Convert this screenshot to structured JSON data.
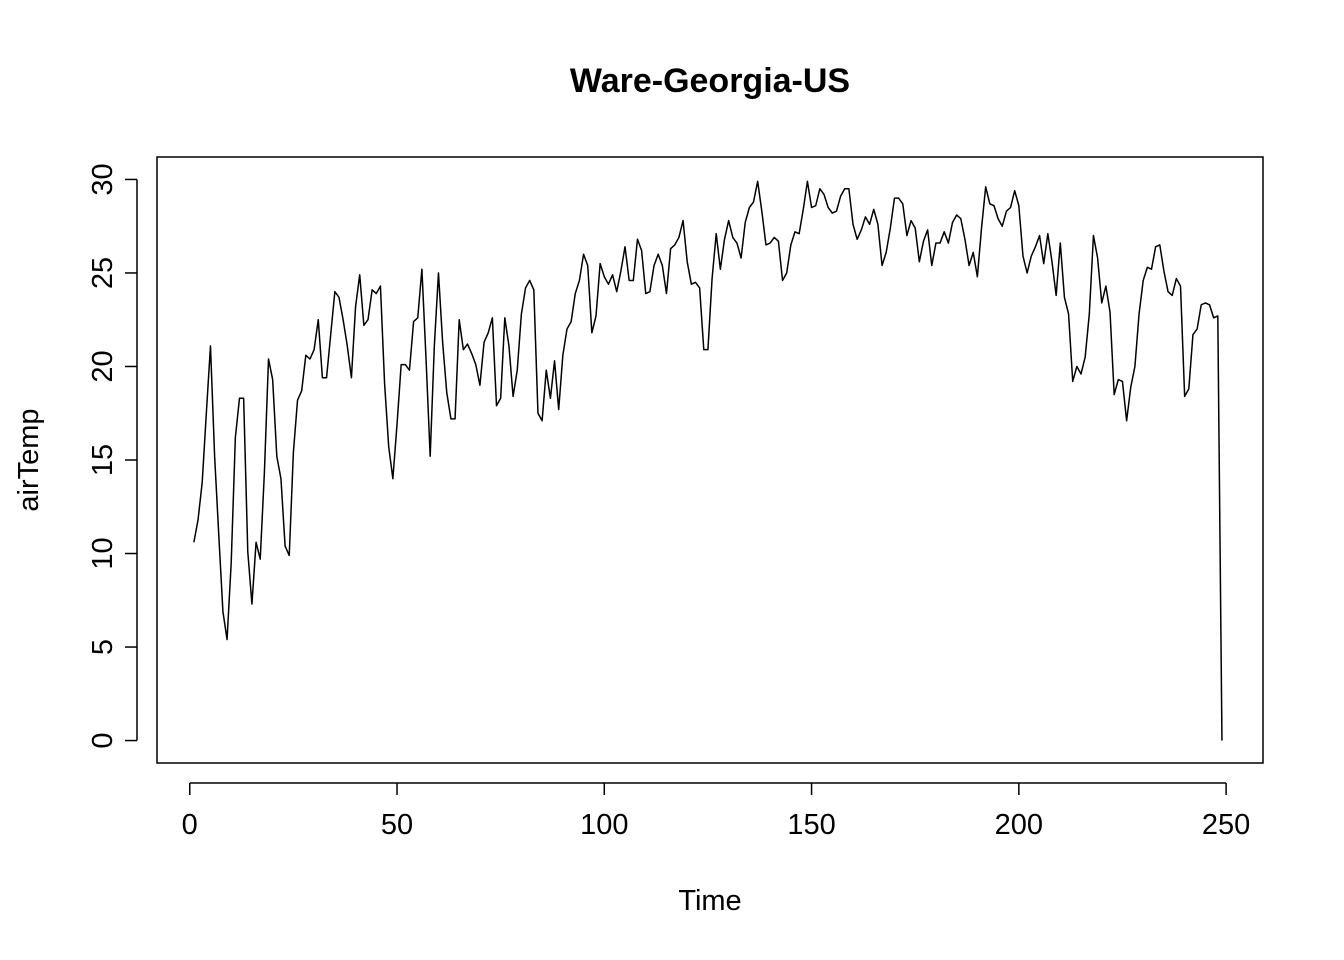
{
  "chart_data": {
    "type": "line",
    "title": "Ware-Georgia-US",
    "xlabel": "Time",
    "ylabel": "airTemp",
    "xlim": [
      -7.9,
      258.9
    ],
    "ylim": [
      -1.2,
      31.2
    ],
    "xticks": [
      0,
      50,
      100,
      150,
      200,
      250
    ],
    "yticks": [
      0,
      5,
      10,
      15,
      20,
      25,
      30
    ],
    "grid": false,
    "legend": "none",
    "line_color": "#000000",
    "series": [
      {
        "values": [
          10.6,
          11.8,
          13.8,
          17.5,
          21.1,
          15.2,
          11.0,
          6.9,
          5.4,
          9.5,
          16.2,
          18.3,
          18.3,
          10.1,
          7.3,
          10.6,
          9.7,
          14.3,
          20.4,
          19.3,
          15.2,
          14.0,
          10.4,
          9.9,
          15.4,
          18.2,
          18.7,
          20.6,
          20.4,
          20.9,
          22.5,
          19.4,
          19.4,
          21.7,
          24.0,
          23.7,
          22.5,
          21.1,
          19.4,
          23.2,
          24.9,
          22.2,
          22.5,
          24.1,
          23.9,
          24.3,
          19.1,
          15.7,
          14.0,
          16.9,
          20.1,
          20.1,
          19.8,
          22.4,
          22.6,
          25.2,
          20.4,
          15.2,
          21.1,
          25.0,
          21.3,
          18.6,
          17.2,
          17.2,
          22.5,
          20.9,
          21.2,
          20.7,
          20.1,
          19.0,
          21.3,
          21.8,
          22.6,
          17.9,
          18.3,
          22.6,
          21.1,
          18.4,
          19.8,
          22.8,
          24.2,
          24.6,
          24.1,
          17.5,
          17.1,
          19.8,
          18.3,
          20.3,
          17.7,
          20.6,
          22.0,
          22.4,
          23.9,
          24.6,
          26.0,
          25.4,
          21.8,
          22.7,
          25.5,
          24.8,
          24.4,
          24.9,
          24.0,
          25.1,
          26.4,
          24.6,
          24.6,
          26.8,
          26.2,
          23.9,
          24.0,
          25.4,
          26.0,
          25.4,
          23.9,
          26.3,
          26.5,
          26.9,
          27.8,
          25.6,
          24.4,
          24.5,
          24.2,
          20.9,
          20.9,
          24.7,
          27.1,
          25.2,
          26.8,
          27.8,
          26.9,
          26.6,
          25.8,
          27.7,
          28.5,
          28.8,
          29.9,
          28.3,
          26.5,
          26.6,
          26.9,
          26.7,
          24.6,
          25.0,
          26.5,
          27.2,
          27.1,
          28.4,
          29.9,
          28.5,
          28.6,
          29.5,
          29.2,
          28.5,
          28.2,
          28.3,
          29.1,
          29.5,
          29.5,
          27.6,
          26.8,
          27.3,
          28.0,
          27.6,
          28.4,
          27.6,
          25.4,
          26.1,
          27.4,
          29.0,
          29.0,
          28.7,
          27.0,
          27.8,
          27.4,
          25.6,
          26.7,
          27.3,
          25.4,
          26.6,
          26.6,
          27.2,
          26.6,
          27.7,
          28.1,
          27.9,
          26.8,
          25.4,
          26.1,
          24.8,
          27.4,
          29.6,
          28.7,
          28.6,
          27.9,
          27.5,
          28.3,
          28.5,
          29.4,
          28.6,
          25.9,
          25.0,
          25.9,
          26.4,
          27.0,
          25.5,
          27.1,
          25.6,
          23.8,
          26.6,
          23.7,
          22.8,
          19.2,
          20.0,
          19.6,
          20.5,
          22.8,
          27.0,
          25.8,
          23.4,
          24.3,
          22.9,
          18.5,
          19.3,
          19.2,
          17.1,
          18.9,
          20.0,
          22.8,
          24.6,
          25.3,
          25.2,
          26.4,
          26.5,
          25.1,
          24.0,
          23.8,
          24.7,
          24.3,
          18.4,
          18.8,
          21.7,
          22.0,
          23.3,
          23.4,
          23.3,
          22.6,
          22.7,
          0.0
        ]
      }
    ]
  }
}
